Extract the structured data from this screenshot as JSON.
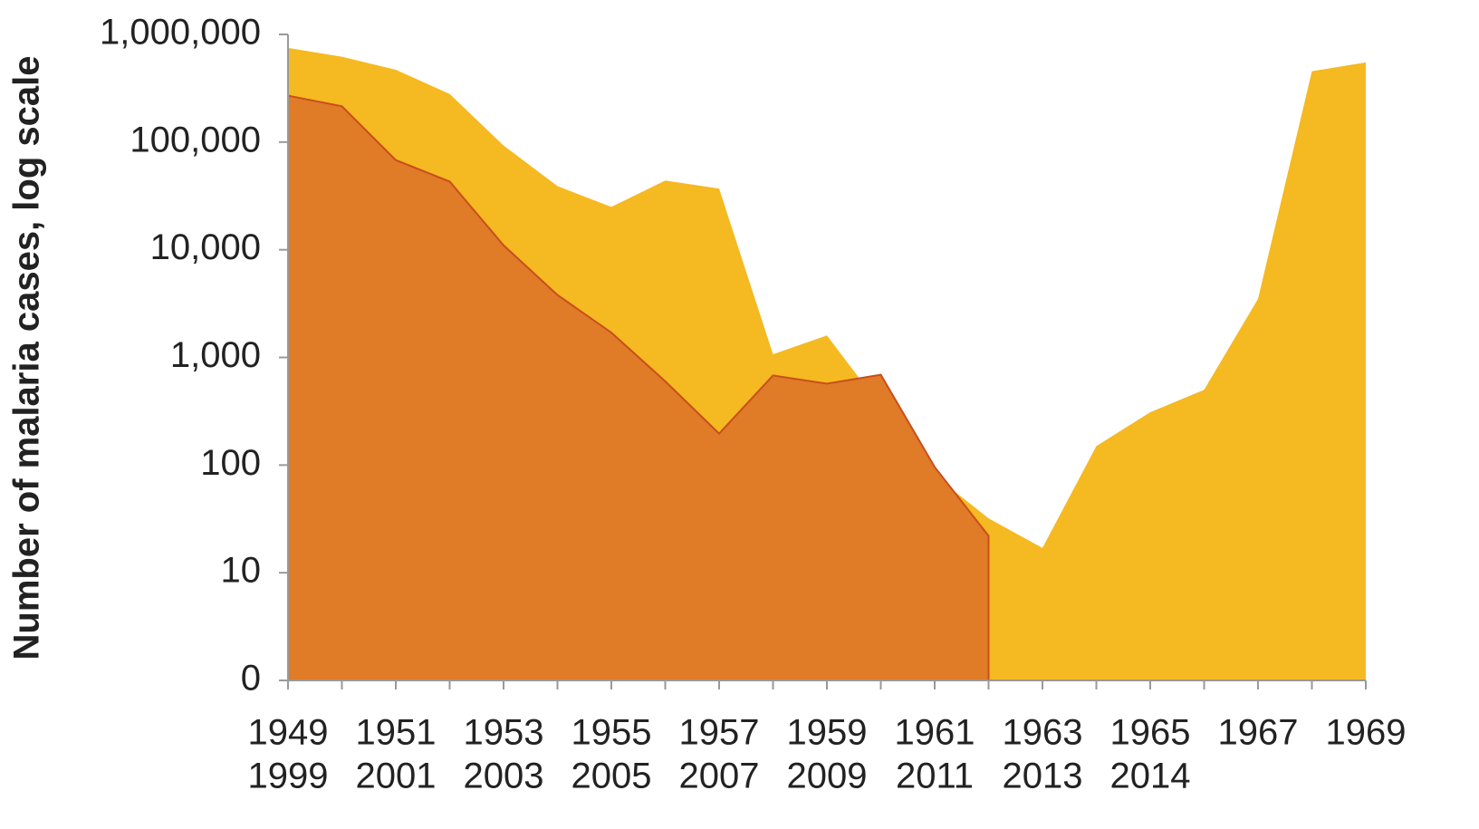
{
  "chart_data": {
    "type": "area",
    "y_label": "Number of malaria cases, log scale",
    "categories": [
      "1949",
      null,
      "1951",
      null,
      "1953",
      null,
      "1955",
      null,
      "1957",
      null,
      "1959",
      null,
      "1961",
      null,
      "1963",
      null,
      "1965",
      null,
      "1967",
      null,
      "1969"
    ],
    "categories2": [
      "1999",
      null,
      "2001",
      null,
      "2003",
      null,
      "2005",
      null,
      "2007",
      null,
      "2009",
      null,
      "2011",
      null,
      "2013",
      null,
      "2014",
      null,
      null,
      null,
      null
    ],
    "series": [
      {
        "color": "#f5b921",
        "values": [
          750000,
          620000,
          470000,
          280000,
          93000,
          39000,
          25000,
          44000,
          37000,
          1070,
          1600,
          350,
          80,
          32,
          17,
          150,
          310,
          500,
          3500,
          455000,
          550000
        ]
      },
      {
        "color": "#e07b27",
        "line_color": "#c94e1c",
        "values": [
          270000,
          215000,
          68000,
          43000,
          11000,
          3800,
          1700,
          600,
          196,
          680,
          570,
          690,
          96,
          22,
          null,
          null,
          null,
          null,
          null,
          null,
          null
        ]
      }
    ],
    "log_scale": true,
    "ylim": [
      0,
      1000000
    ],
    "yticks": [
      0,
      10,
      100,
      {
        "value": 1000,
        "label": "1,000"
      },
      {
        "value": 10000,
        "label": "10,000"
      },
      {
        "value": 100000,
        "label": "100,000"
      },
      {
        "value": 1000000,
        "label": "1,000,000"
      }
    ]
  }
}
